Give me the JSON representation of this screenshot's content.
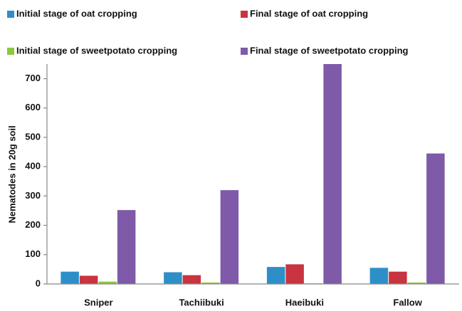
{
  "chart_data": {
    "type": "bar",
    "ylabel": "Nematodes in 20g soil",
    "categories": [
      "Sniper",
      "Tachiibuki",
      "Haeibuki",
      "Fallow"
    ],
    "series": [
      {
        "name": "Initial stage of oat cropping",
        "color": "#2e8fc8",
        "values": [
          42,
          40,
          58,
          55
        ]
      },
      {
        "name": "Final stage of oat cropping",
        "color": "#c8343f",
        "values": [
          28,
          30,
          67,
          42
        ]
      },
      {
        "name": "Initial stage of sweetpotato cropping",
        "color": "#8dc63f",
        "values": [
          8,
          5,
          2,
          5
        ]
      },
      {
        "name": "Final stage of sweetpotato cropping",
        "color": "#7f5aa8",
        "values": [
          252,
          320,
          750,
          445
        ]
      }
    ],
    "ylim": [
      0,
      750
    ],
    "yticks": [
      0,
      100,
      200,
      300,
      400,
      500,
      600,
      700
    ],
    "grid": false
  }
}
